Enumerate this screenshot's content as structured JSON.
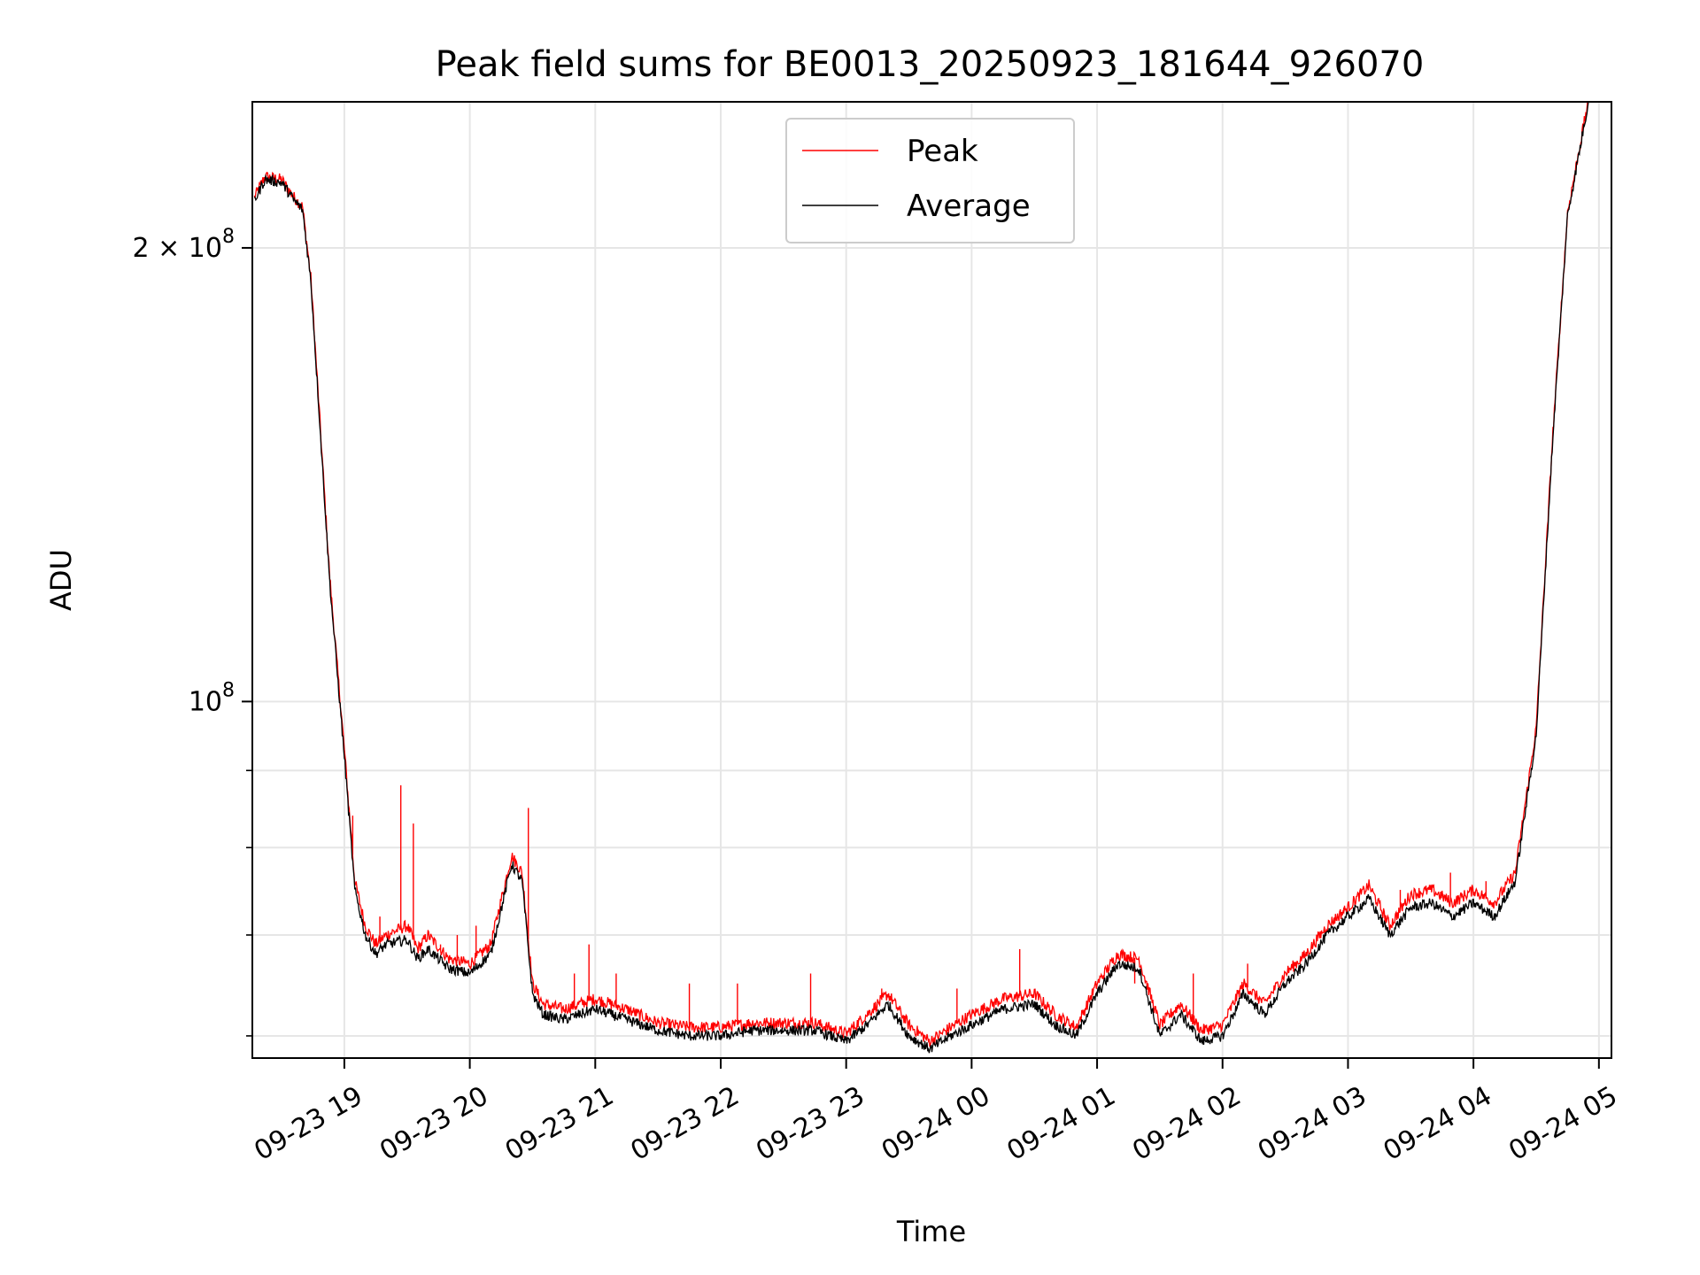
{
  "chart_data": {
    "type": "line",
    "title": "Peak field sums for BE0013_20250923_181644_926070",
    "xlabel": "Time",
    "ylabel": "ADU",
    "yscale": "log",
    "grid": true,
    "legend_position": "top-center",
    "xlim": [
      "2025-09-23 18:16",
      "2025-09-24 05:06"
    ],
    "ylim": [
      58000000,
      250000000
    ],
    "x_ticks": [
      "2025-09-23 19:00",
      "2025-09-23 20:00",
      "2025-09-23 21:00",
      "2025-09-23 22:00",
      "2025-09-23 23:00",
      "2025-09-24 00:00",
      "2025-09-24 01:00",
      "2025-09-24 02:00",
      "2025-09-24 03:00",
      "2025-09-24 04:00",
      "2025-09-24 05:00"
    ],
    "x_tick_labels": [
      "09-23 19",
      "09-23 20",
      "09-23 21",
      "09-23 22",
      "09-23 23",
      "09-24 00",
      "09-24 01",
      "09-24 02",
      "09-24 03",
      "09-24 04",
      "09-24 05"
    ],
    "y_major_ticks": [
      100000000,
      200000000
    ],
    "y_major_labels": [
      "10",
      "2 × 10"
    ],
    "y_major_exponent": "8",
    "y_minor_ticks": [
      60000000,
      70000000,
      80000000,
      90000000
    ],
    "x": [
      "2025-09-23 18:17",
      "2025-09-23 18:22",
      "2025-09-23 18:30",
      "2025-09-23 18:36",
      "2025-09-23 18:40",
      "2025-09-23 18:44",
      "2025-09-23 18:48",
      "2025-09-23 18:53",
      "2025-09-23 18:57",
      "2025-09-23 19:00",
      "2025-09-23 19:05",
      "2025-09-23 19:10",
      "2025-09-23 19:15",
      "2025-09-23 19:20",
      "2025-09-23 19:30",
      "2025-09-23 19:35",
      "2025-09-23 19:40",
      "2025-09-23 19:50",
      "2025-09-23 20:00",
      "2025-09-23 20:10",
      "2025-09-23 20:20",
      "2025-09-23 20:25",
      "2025-09-23 20:30",
      "2025-09-23 20:35",
      "2025-09-23 20:45",
      "2025-09-23 21:00",
      "2025-09-23 21:15",
      "2025-09-23 21:30",
      "2025-09-23 21:45",
      "2025-09-23 22:00",
      "2025-09-23 22:15",
      "2025-09-23 22:30",
      "2025-09-23 22:45",
      "2025-09-23 23:00",
      "2025-09-23 23:10",
      "2025-09-23 23:20",
      "2025-09-23 23:30",
      "2025-09-23 23:40",
      "2025-09-23 23:50",
      "2025-09-24 00:00",
      "2025-09-24 00:15",
      "2025-09-24 00:30",
      "2025-09-24 00:40",
      "2025-09-24 00:50",
      "2025-09-24 01:00",
      "2025-09-24 01:10",
      "2025-09-24 01:20",
      "2025-09-24 01:30",
      "2025-09-24 01:40",
      "2025-09-24 01:50",
      "2025-09-24 02:00",
      "2025-09-24 02:10",
      "2025-09-24 02:20",
      "2025-09-24 02:30",
      "2025-09-24 02:40",
      "2025-09-24 02:50",
      "2025-09-24 03:00",
      "2025-09-24 03:10",
      "2025-09-24 03:20",
      "2025-09-24 03:30",
      "2025-09-24 03:40",
      "2025-09-24 03:50",
      "2025-09-24 04:00",
      "2025-09-24 04:10",
      "2025-09-24 04:20",
      "2025-09-24 04:30",
      "2025-09-24 04:38",
      "2025-09-24 04:45",
      "2025-09-24 04:55"
    ],
    "series": [
      {
        "name": "Average",
        "color": "#000000",
        "values": [
          215000000,
          222000000,
          221000000,
          215000000,
          212000000,
          190000000,
          155000000,
          120000000,
          103000000,
          92000000,
          75000000,
          70000000,
          68000000,
          69000000,
          69500000,
          67500000,
          68500000,
          66500000,
          66000000,
          68000000,
          78000000,
          76000000,
          64000000,
          62000000,
          61500000,
          62500000,
          61500000,
          60500000,
          60000000,
          60000000,
          60500000,
          60500000,
          60500000,
          59500000,
          61000000,
          63000000,
          60000000,
          58800000,
          60000000,
          61000000,
          62500000,
          63000000,
          61000000,
          60000000,
          64000000,
          67000000,
          66500000,
          60000000,
          62000000,
          59500000,
          60000000,
          64000000,
          62000000,
          65000000,
          67000000,
          70000000,
          72000000,
          74000000,
          70000000,
          73000000,
          73500000,
          72000000,
          73500000,
          72000000,
          76000000,
          95000000,
          150000000,
          210000000,
          250000000
        ]
      },
      {
        "name": "Peak",
        "color": "#ff0000",
        "values": [
          216000000,
          223000000,
          222000000,
          216000000,
          213000000,
          191000000,
          156000000,
          121000000,
          104000000,
          93000000,
          76000000,
          71000000,
          69000000,
          70000000,
          71000000,
          68500000,
          70000000,
          67500000,
          67000000,
          69000000,
          79000000,
          77000000,
          65000000,
          63000000,
          62500000,
          63500000,
          62500000,
          61200000,
          60800000,
          60800000,
          61200000,
          61200000,
          61200000,
          60200000,
          62000000,
          64000000,
          61000000,
          59500000,
          60800000,
          62000000,
          63500000,
          64000000,
          62000000,
          60800000,
          65000000,
          68000000,
          67500000,
          61000000,
          63000000,
          60500000,
          61000000,
          65000000,
          63000000,
          66000000,
          68000000,
          71000000,
          73000000,
          75500000,
          71000000,
          74500000,
          75000000,
          73500000,
          75000000,
          73500000,
          77000000,
          96000000,
          151000000,
          211000000,
          251000000
        ]
      }
    ],
    "spikes": {
      "x": [
        "2025-09-23 19:04",
        "2025-09-23 19:17",
        "2025-09-23 19:27",
        "2025-09-23 19:33",
        "2025-09-23 19:46",
        "2025-09-23 19:54",
        "2025-09-23 20:03",
        "2025-09-23 20:28",
        "2025-09-23 20:50",
        "2025-09-23 20:57",
        "2025-09-23 21:10",
        "2025-09-23 21:45",
        "2025-09-23 22:08",
        "2025-09-23 22:43",
        "2025-09-23 23:17",
        "2025-09-23 23:53",
        "2025-09-24 00:23",
        "2025-09-24 01:18",
        "2025-09-24 01:46",
        "2025-09-24 02:12",
        "2025-09-24 02:58",
        "2025-09-24 03:25",
        "2025-09-24 03:49",
        "2025-09-24 04:06"
      ],
      "values": [
        84000000,
        72000000,
        88000000,
        83000000,
        69000000,
        70000000,
        71000000,
        85000000,
        66000000,
        69000000,
        66000000,
        65000000,
        65000000,
        66000000,
        64500000,
        64500000,
        68500000,
        65000000,
        66000000,
        67000000,
        73000000,
        75000000,
        77000000,
        76000000
      ]
    }
  }
}
